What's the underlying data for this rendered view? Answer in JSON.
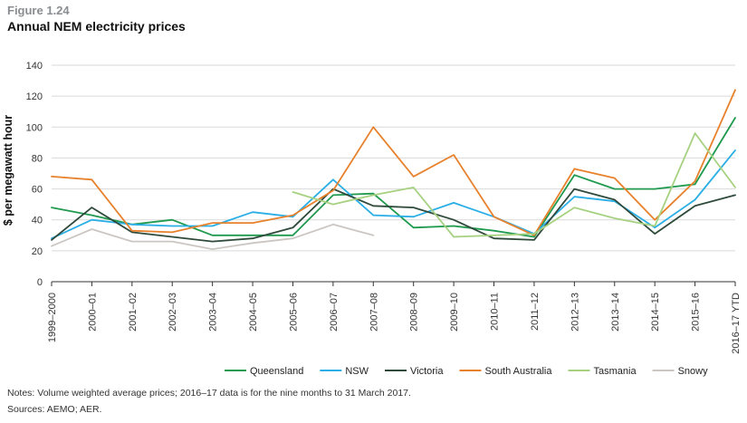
{
  "figure": {
    "label": "Figure 1.24",
    "title": "Annual NEM electricity prices",
    "notes": "Notes: Volume weighted average prices; 2016–17 data is for the nine months to 31 March 2017.",
    "sources": "Sources: AEMO; AER."
  },
  "colors": {
    "Queensland": "#1f9a4e",
    "NSW": "#2aaee6",
    "Victoria": "#2f4a3a",
    "South Australia": "#e8812c",
    "Tasmania": "#a6d180",
    "Snowy": "#cbc6c2",
    "axis": "#333333",
    "grid": "#d9d9d9"
  },
  "chart_data": {
    "type": "line",
    "title": "Annual NEM electricity prices",
    "xlabel": "",
    "ylabel": "$ per megawatt hour",
    "ylim": [
      0,
      140
    ],
    "yticks": [
      0,
      20,
      40,
      60,
      80,
      100,
      120,
      140
    ],
    "grid": true,
    "legend": "bottom",
    "categories": [
      "1999–2000",
      "2000–01",
      "2001–02",
      "2002–03",
      "2003–04",
      "2004–05",
      "2005–06",
      "2006–07",
      "2007–08",
      "2008–09",
      "2009–10",
      "2010–11",
      "2011–12",
      "2012–13",
      "2013–14",
      "2014–15",
      "2015–16",
      "2016–17 YTD"
    ],
    "series": [
      {
        "name": "Queensland",
        "values": [
          48,
          43,
          37,
          40,
          30,
          30,
          30,
          56,
          57,
          35,
          36,
          33,
          29,
          69,
          60,
          60,
          63,
          106
        ]
      },
      {
        "name": "NSW",
        "values": [
          28,
          40,
          37,
          36,
          36,
          45,
          42,
          66,
          43,
          42,
          51,
          42,
          31,
          55,
          52,
          35,
          53,
          85
        ]
      },
      {
        "name": "Victoria",
        "values": [
          27,
          48,
          32,
          29,
          26,
          28,
          35,
          60,
          49,
          48,
          40,
          28,
          27,
          60,
          53,
          31,
          49,
          56
        ]
      },
      {
        "name": "South Australia",
        "values": [
          68,
          66,
          33,
          32,
          38,
          38,
          43,
          59,
          100,
          68,
          82,
          42,
          30,
          73,
          67,
          40,
          65,
          124
        ]
      },
      {
        "name": "Tasmania",
        "values": [
          null,
          null,
          null,
          null,
          null,
          null,
          58,
          50,
          56,
          61,
          29,
          30,
          31,
          48,
          41,
          36,
          96,
          61
        ]
      },
      {
        "name": "Snowy",
        "values": [
          23,
          34,
          26,
          26,
          21,
          25,
          28,
          37,
          30,
          null,
          null,
          null,
          null,
          null,
          null,
          null,
          null,
          null
        ]
      }
    ]
  }
}
